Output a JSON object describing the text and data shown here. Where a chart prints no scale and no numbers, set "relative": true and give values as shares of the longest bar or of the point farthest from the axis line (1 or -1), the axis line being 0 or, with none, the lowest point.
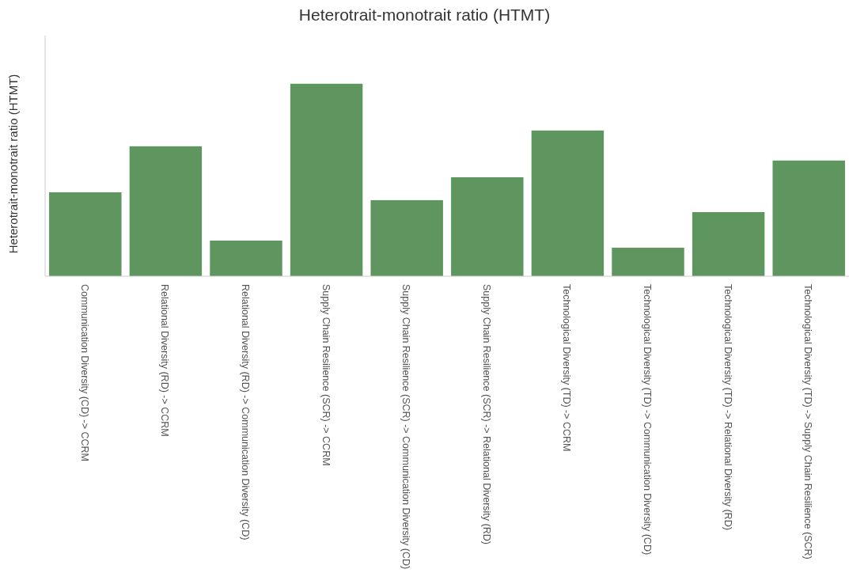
{
  "chart_data": {
    "type": "bar",
    "title": "Heterotrait-monotrait ratio (HTMT)",
    "ylabel": "Heterotrait-monotrait ratio (HTMT)",
    "relative": true,
    "color": "#5f955f",
    "categories": [
      "Communication Diversity (CD) -> CCRM",
      "Relational Diversity (RD) -> CCRM",
      "Relational Diversity (RD) -> Communication Diversity (CD)",
      "Supply Chain Resilience (SCR) -> CCRM",
      "Supply Chain Resilience (SCR) -> Communication Diversity (CD)",
      "Supply Chain Resilience (SCR) -> Relational Diversity (RD)",
      "Technological Diversity (TD) -> CCRM",
      "Technological Diversity (TD) -> Communication Diversity (CD)",
      "Technological Diversity (TD) -> Relational Diversity (RD)",
      "Technological Diversity (TD) -> Supply Chain Resilience (SCR)"
    ],
    "values": [
      0.436,
      0.675,
      0.185,
      1,
      0.395,
      0.514,
      0.757,
      0.148,
      0.333,
      0.601
    ]
  }
}
